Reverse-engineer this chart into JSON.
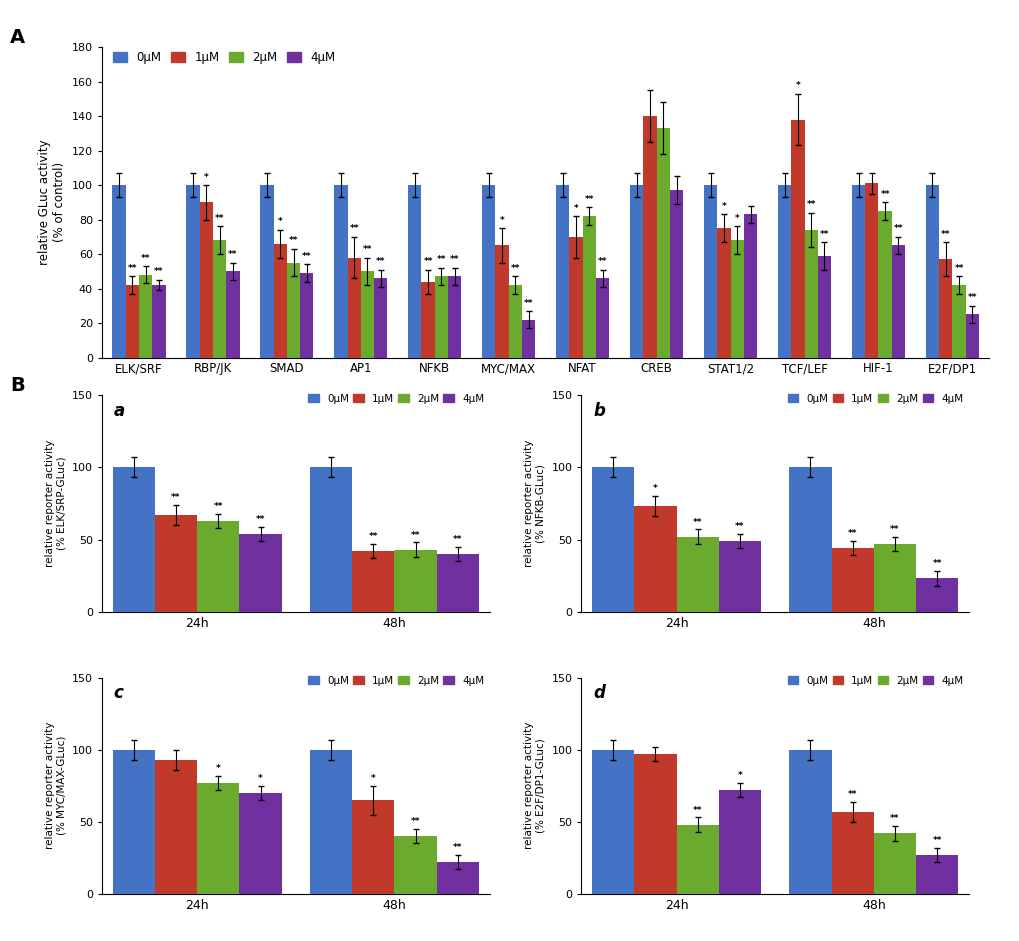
{
  "panel_A": {
    "categories": [
      "ELK/SRF",
      "RBP/JK",
      "SMAD",
      "AP1",
      "NFKB",
      "MYC/MAX",
      "NFAT",
      "CREB",
      "STAT1/2",
      "TCF/LEF",
      "HIF-1",
      "E2F/DP1"
    ],
    "values_0uM": [
      100,
      100,
      100,
      100,
      100,
      100,
      100,
      100,
      100,
      100,
      100,
      100
    ],
    "values_1uM": [
      42,
      90,
      66,
      58,
      44,
      65,
      70,
      140,
      75,
      138,
      101,
      57
    ],
    "values_2uM": [
      48,
      68,
      55,
      50,
      47,
      42,
      82,
      133,
      68,
      74,
      85,
      42
    ],
    "values_4uM": [
      42,
      50,
      49,
      46,
      47,
      22,
      46,
      97,
      83,
      59,
      65,
      25
    ],
    "err_0uM": [
      7,
      7,
      7,
      7,
      7,
      7,
      7,
      7,
      7,
      7,
      7,
      7
    ],
    "err_1uM": [
      5,
      10,
      8,
      12,
      7,
      10,
      12,
      15,
      8,
      15,
      6,
      10
    ],
    "err_2uM": [
      5,
      8,
      8,
      8,
      5,
      5,
      5,
      15,
      8,
      10,
      5,
      5
    ],
    "err_4uM": [
      3,
      5,
      5,
      5,
      5,
      5,
      5,
      8,
      5,
      8,
      5,
      5
    ],
    "sig_1uM": [
      "**",
      "*",
      "*",
      "**",
      "**",
      "*",
      "*",
      "",
      "*",
      "*",
      "",
      "**"
    ],
    "sig_2uM": [
      "**",
      "**",
      "**",
      "**",
      "**",
      "**",
      "**",
      "",
      "*",
      "**",
      "**",
      "**"
    ],
    "sig_4uM": [
      "**",
      "**",
      "**",
      "**",
      "**",
      "**",
      "**",
      "",
      "",
      "**",
      "**",
      "**"
    ],
    "ylabel": "relative GLuc activity\n(% of control)",
    "ylim": [
      0,
      180
    ],
    "yticks": [
      0,
      20,
      40,
      60,
      80,
      100,
      120,
      140,
      160,
      180
    ]
  },
  "panel_B_a": {
    "title": "a",
    "ylabel": "relative reporter activity\n(% ELK/SRP-GLuc)",
    "groups": [
      "24h",
      "48h"
    ],
    "values_0uM": [
      100,
      100
    ],
    "values_1uM": [
      67,
      42
    ],
    "values_2uM": [
      63,
      43
    ],
    "values_4uM": [
      54,
      40
    ],
    "err_0uM": [
      7,
      7
    ],
    "err_1uM": [
      7,
      5
    ],
    "err_2uM": [
      5,
      5
    ],
    "err_4uM": [
      5,
      5
    ],
    "sig_1uM": [
      "**",
      "**"
    ],
    "sig_2uM": [
      "**",
      "**"
    ],
    "sig_4uM": [
      "**",
      "**"
    ],
    "ylim": [
      0,
      150
    ],
    "yticks": [
      0,
      50,
      100,
      150
    ]
  },
  "panel_B_b": {
    "title": "b",
    "ylabel": "relative reporter activity\n(% NFKB-GLuc)",
    "groups": [
      "24h",
      "48h"
    ],
    "values_0uM": [
      100,
      100
    ],
    "values_1uM": [
      73,
      44
    ],
    "values_2uM": [
      52,
      47
    ],
    "values_4uM": [
      49,
      23
    ],
    "err_0uM": [
      7,
      7
    ],
    "err_1uM": [
      7,
      5
    ],
    "err_2uM": [
      5,
      5
    ],
    "err_4uM": [
      5,
      5
    ],
    "sig_1uM": [
      "*",
      "**"
    ],
    "sig_2uM": [
      "**",
      "**"
    ],
    "sig_4uM": [
      "**",
      "**"
    ],
    "ylim": [
      0,
      150
    ],
    "yticks": [
      0,
      50,
      100,
      150
    ]
  },
  "panel_B_c": {
    "title": "c",
    "ylabel": "relative reporter activity\n(% MYC/MAX-GLuc)",
    "groups": [
      "24h",
      "48h"
    ],
    "values_0uM": [
      100,
      100
    ],
    "values_1uM": [
      93,
      65
    ],
    "values_2uM": [
      77,
      40
    ],
    "values_4uM": [
      70,
      22
    ],
    "err_0uM": [
      7,
      7
    ],
    "err_1uM": [
      7,
      10
    ],
    "err_2uM": [
      5,
      5
    ],
    "err_4uM": [
      5,
      5
    ],
    "sig_1uM": [
      "",
      "*"
    ],
    "sig_2uM": [
      "*",
      "**"
    ],
    "sig_4uM": [
      "*",
      "**"
    ],
    "ylim": [
      0,
      150
    ],
    "yticks": [
      0,
      50,
      100,
      150
    ]
  },
  "panel_B_d": {
    "title": "d",
    "ylabel": "relative reporter activity\n(% E2F/DP1-GLuc)",
    "groups": [
      "24h",
      "48h"
    ],
    "values_0uM": [
      100,
      100
    ],
    "values_1uM": [
      97,
      57
    ],
    "values_2uM": [
      48,
      42
    ],
    "values_4uM": [
      72,
      27
    ],
    "err_0uM": [
      7,
      7
    ],
    "err_1uM": [
      5,
      7
    ],
    "err_2uM": [
      5,
      5
    ],
    "err_4uM": [
      5,
      5
    ],
    "sig_1uM": [
      "",
      "**"
    ],
    "sig_2uM": [
      "**",
      "**"
    ],
    "sig_4uM": [
      "*",
      "**"
    ],
    "ylim": [
      0,
      150
    ],
    "yticks": [
      0,
      50,
      100,
      150
    ]
  },
  "colors": {
    "0uM": "#4472C4",
    "1uM": "#C0392B",
    "2uM": "#6AAB2E",
    "4uM": "#7030A0"
  },
  "legend_labels": [
    "0μM",
    "1μM",
    "2μM",
    "4μM"
  ],
  "label_A": "A",
  "label_B": "B"
}
